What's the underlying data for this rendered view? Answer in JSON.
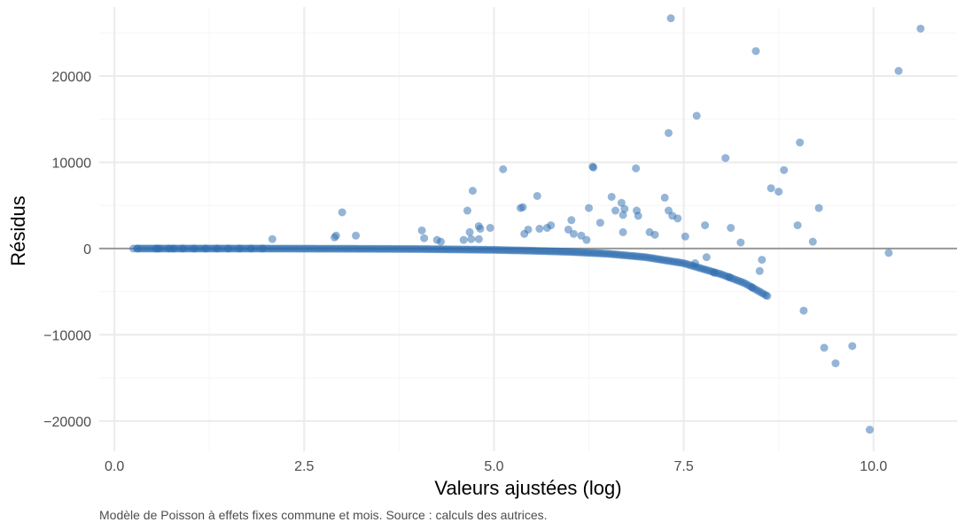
{
  "chart_data": {
    "type": "scatter",
    "title": "",
    "xlabel": "Valeurs ajustées (log)",
    "ylabel": "Résidus",
    "caption": "Modèle de Poisson à effets fixes commune et mois. Source : calculs des autrices.",
    "xlim": [
      -0.2,
      11.1
    ],
    "ylim": [
      -23500,
      28000
    ],
    "x_ticks": [
      0.0,
      2.5,
      5.0,
      7.5,
      10.0
    ],
    "x_tick_labels": [
      "0.0",
      "2.5",
      "5.0",
      "7.5",
      "10.0"
    ],
    "y_ticks": [
      -20000,
      -10000,
      0,
      10000,
      20000
    ],
    "y_tick_labels": [
      "−20000",
      "−10000",
      "0",
      "10000",
      "20000"
    ],
    "reference_line_y": 0,
    "grid": true,
    "colors": {
      "points": "#2b6cb0",
      "reference_line": "#999999",
      "grid_major": "#ebebeb",
      "grid_minor": "#f5f5f5"
    },
    "trend": {
      "description_values": [
        [
          0.3,
          0
        ],
        [
          2.0,
          0
        ],
        [
          3.0,
          -20
        ],
        [
          4.0,
          -50
        ],
        [
          5.0,
          -150
        ],
        [
          5.5,
          -250
        ],
        [
          6.0,
          -380
        ],
        [
          6.5,
          -600
        ],
        [
          7.0,
          -1000
        ],
        [
          7.5,
          -1700
        ],
        [
          8.0,
          -3000
        ],
        [
          8.3,
          -4000
        ],
        [
          8.6,
          -5500
        ]
      ]
    },
    "points": [
      [
        0.25,
        0
      ],
      [
        0.3,
        0
      ],
      [
        0.55,
        0
      ],
      [
        0.58,
        0
      ],
      [
        0.72,
        0
      ],
      [
        0.78,
        0
      ],
      [
        0.9,
        0
      ],
      [
        1.05,
        0
      ],
      [
        1.2,
        0
      ],
      [
        1.35,
        0
      ],
      [
        1.5,
        0
      ],
      [
        1.65,
        0
      ],
      [
        1.8,
        0
      ],
      [
        1.95,
        0
      ],
      [
        2.08,
        1100
      ],
      [
        2.9,
        1300
      ],
      [
        2.92,
        1500
      ],
      [
        3.0,
        4200
      ],
      [
        3.18,
        1500
      ],
      [
        4.05,
        2100
      ],
      [
        4.08,
        1200
      ],
      [
        4.25,
        1000
      ],
      [
        4.3,
        800
      ],
      [
        4.6,
        1000
      ],
      [
        4.65,
        4400
      ],
      [
        4.68,
        1900
      ],
      [
        4.7,
        1100
      ],
      [
        4.72,
        6700
      ],
      [
        4.8,
        2600
      ],
      [
        4.82,
        2300
      ],
      [
        4.8,
        1100
      ],
      [
        4.95,
        2400
      ],
      [
        5.12,
        9200
      ],
      [
        5.35,
        4700
      ],
      [
        5.38,
        4800
      ],
      [
        5.4,
        1700
      ],
      [
        5.45,
        2200
      ],
      [
        5.57,
        6100
      ],
      [
        5.6,
        2300
      ],
      [
        5.7,
        2400
      ],
      [
        5.75,
        2700
      ],
      [
        5.98,
        2200
      ],
      [
        6.02,
        3300
      ],
      [
        6.05,
        1700
      ],
      [
        6.15,
        1500
      ],
      [
        6.22,
        1000
      ],
      [
        6.25,
        4700
      ],
      [
        6.3,
        9500
      ],
      [
        6.31,
        9400
      ],
      [
        6.4,
        3000
      ],
      [
        6.55,
        6000
      ],
      [
        6.6,
        4400
      ],
      [
        6.68,
        5300
      ],
      [
        6.7,
        3900
      ],
      [
        6.72,
        4600
      ],
      [
        6.7,
        1900
      ],
      [
        6.87,
        9300
      ],
      [
        6.88,
        4400
      ],
      [
        6.9,
        3800
      ],
      [
        7.05,
        1900
      ],
      [
        7.12,
        1600
      ],
      [
        7.25,
        5900
      ],
      [
        7.3,
        4400
      ],
      [
        7.3,
        13400
      ],
      [
        7.33,
        26700
      ],
      [
        7.35,
        3800
      ],
      [
        7.42,
        3500
      ],
      [
        7.52,
        1400
      ],
      [
        7.67,
        15400
      ],
      [
        7.78,
        2700
      ],
      [
        8.05,
        10500
      ],
      [
        8.12,
        2400
      ],
      [
        8.25,
        700
      ],
      [
        8.45,
        22900
      ],
      [
        8.53,
        -1300
      ],
      [
        8.5,
        -2600
      ],
      [
        8.65,
        7000
      ],
      [
        8.75,
        6600
      ],
      [
        8.82,
        9100
      ],
      [
        9.0,
        2700
      ],
      [
        9.03,
        12300
      ],
      [
        9.08,
        -7200
      ],
      [
        9.2,
        800
      ],
      [
        9.28,
        4700
      ],
      [
        9.35,
        -11500
      ],
      [
        9.5,
        -13300
      ],
      [
        9.72,
        -11300
      ],
      [
        9.95,
        -21000
      ],
      [
        10.2,
        -500
      ],
      [
        10.33,
        20600
      ],
      [
        10.62,
        25500
      ],
      [
        7.8,
        -1000
      ],
      [
        7.65,
        -1700
      ],
      [
        7.9,
        -2800
      ],
      [
        8.1,
        -3300
      ],
      [
        8.4,
        -4500
      ],
      [
        8.6,
        -5500
      ]
    ]
  }
}
